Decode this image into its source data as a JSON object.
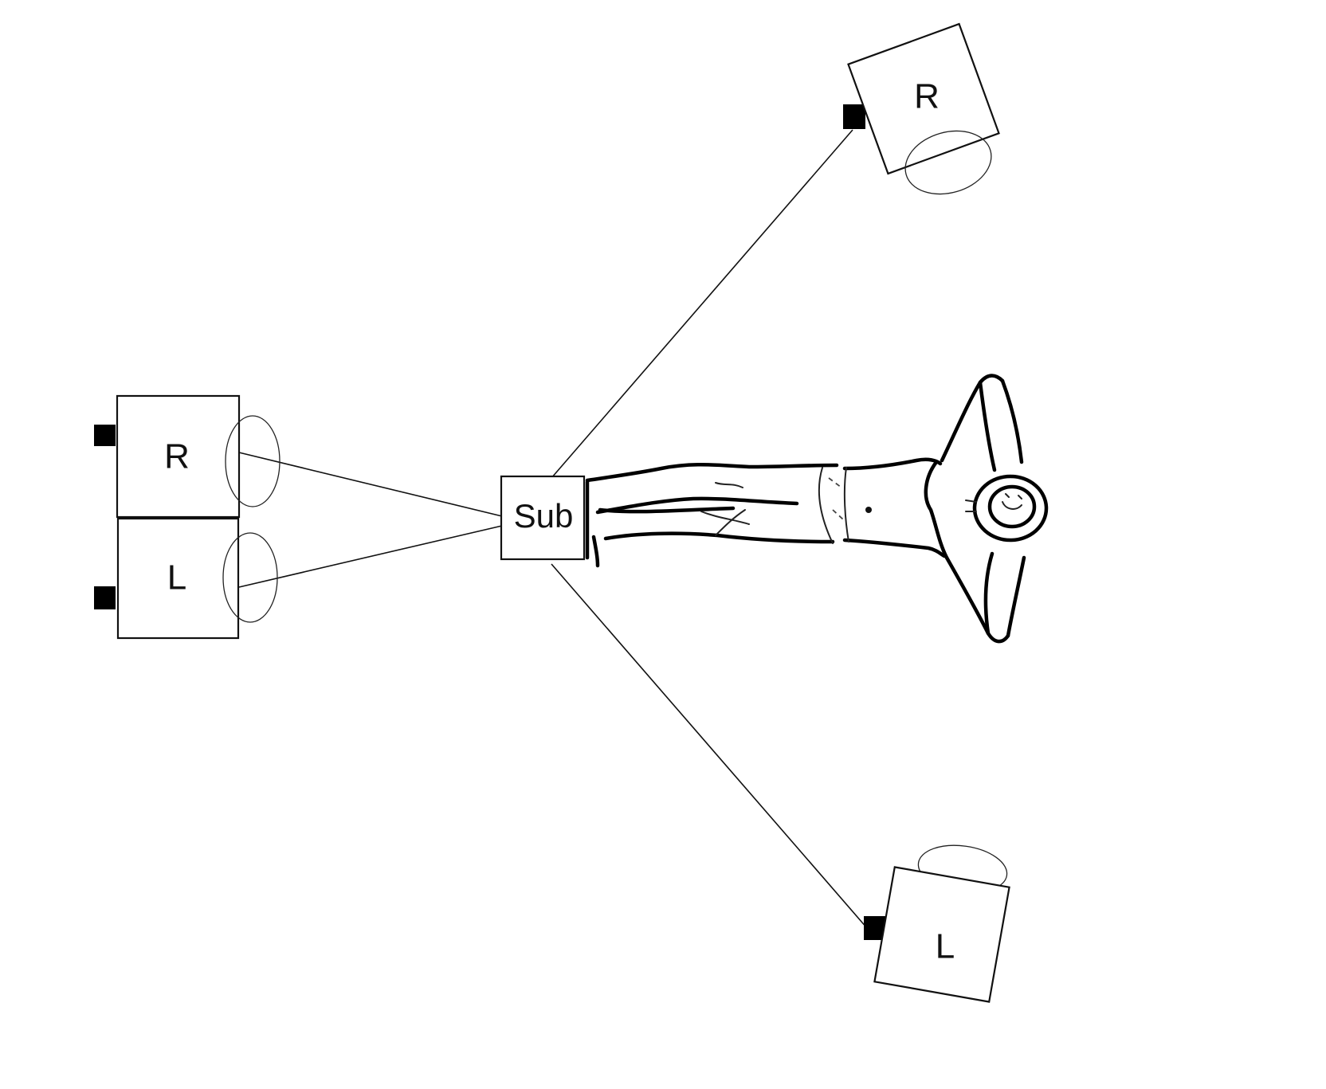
{
  "speakers": {
    "left_stack_right": {
      "label": "R"
    },
    "left_stack_left": {
      "label": "L"
    },
    "top_right": {
      "label": "R"
    },
    "bottom_right": {
      "label": "L"
    }
  },
  "subwoofer": {
    "label": "Sub"
  }
}
